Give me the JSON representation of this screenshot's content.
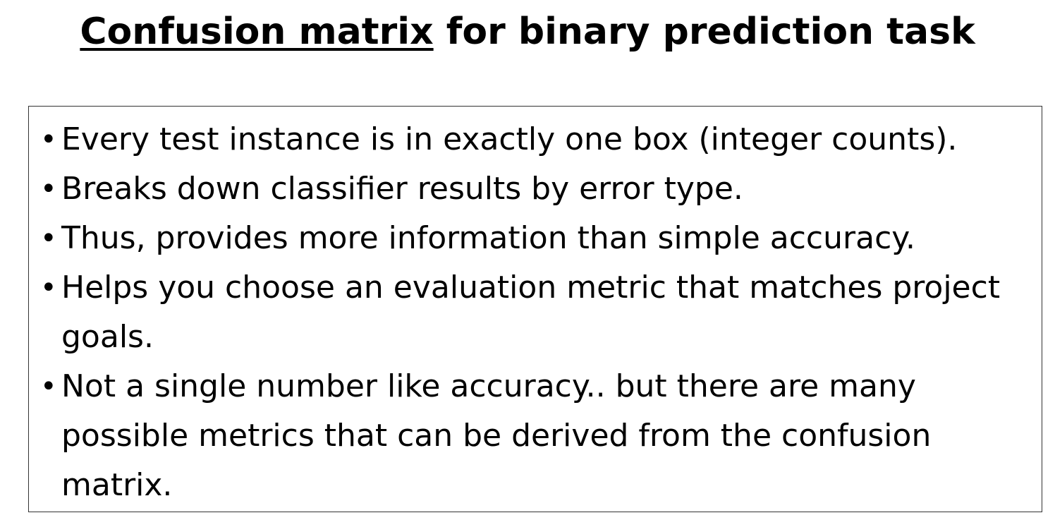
{
  "title": {
    "underlined_part": "Confusion matrix",
    "rest": " for binary prediction task"
  },
  "bullets": [
    {
      "text": "Every test instance is in exactly one box (integer counts)."
    },
    {
      "text": "Breaks down classifier results by error type."
    },
    {
      "text": "Thus, provides more information than simple accuracy."
    },
    {
      "text": "Helps you choose an evaluation metric that matches project goals."
    },
    {
      "text": "Not a single number like accuracy.. but there are many possible metrics that can be derived from the confusion matrix."
    }
  ],
  "bullet_symbol": "•"
}
